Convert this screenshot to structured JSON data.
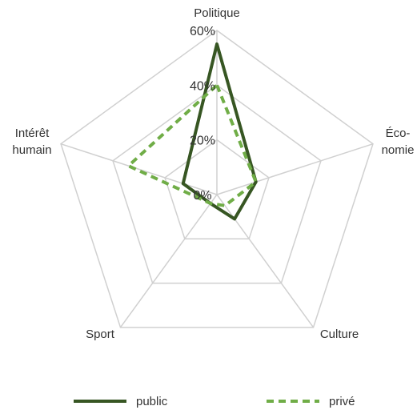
{
  "chart_data": {
    "type": "radar",
    "axes": [
      {
        "label_lines": [
          "Politique"
        ]
      },
      {
        "label_lines": [
          "Éco-",
          "nomie"
        ]
      },
      {
        "label_lines": [
          "Culture"
        ]
      },
      {
        "label_lines": [
          "Sport"
        ]
      },
      {
        "label_lines": [
          "Intérêt",
          "humain"
        ]
      }
    ],
    "rlim": [
      0,
      60
    ],
    "ticks": [
      0,
      20,
      40,
      60
    ],
    "tick_labels": [
      "0%",
      "20%",
      "40%",
      "60%"
    ],
    "grid": true,
    "legend_position": "bottom",
    "series": [
      {
        "name": "public",
        "values": [
          55,
          15,
          11,
          4,
          13
        ],
        "color": "#375623",
        "line_style": "solid"
      },
      {
        "name": "privé",
        "values": [
          40,
          15,
          5,
          4,
          34
        ],
        "color": "#70AD47",
        "line_style": "dashed"
      }
    ]
  }
}
